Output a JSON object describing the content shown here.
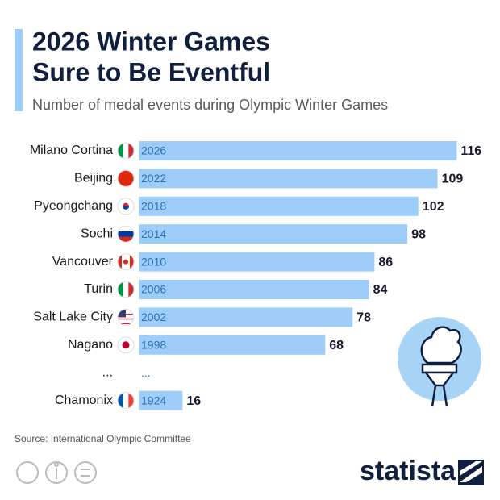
{
  "chart_data": {
    "type": "bar",
    "title": [
      "2026 Winter Games",
      "Sure to Be Eventful"
    ],
    "subtitle": "Number of medal events during Olympic Winter Games",
    "categories": [
      "Milano Cortina",
      "Beijing",
      "Pyeongchang",
      "Sochi",
      "Vancouver",
      "Turin",
      "Salt Lake City",
      "Nagano",
      "...",
      "Chamonix"
    ],
    "years": [
      "2026",
      "2022",
      "2018",
      "2014",
      "2010",
      "2006",
      "2002",
      "1998",
      "...",
      "1924"
    ],
    "values": [
      116,
      109,
      102,
      98,
      86,
      84,
      78,
      68,
      null,
      16
    ],
    "color": "#9dcdf8",
    "source": "Source: International Olympic Committee",
    "brand": "statista"
  }
}
